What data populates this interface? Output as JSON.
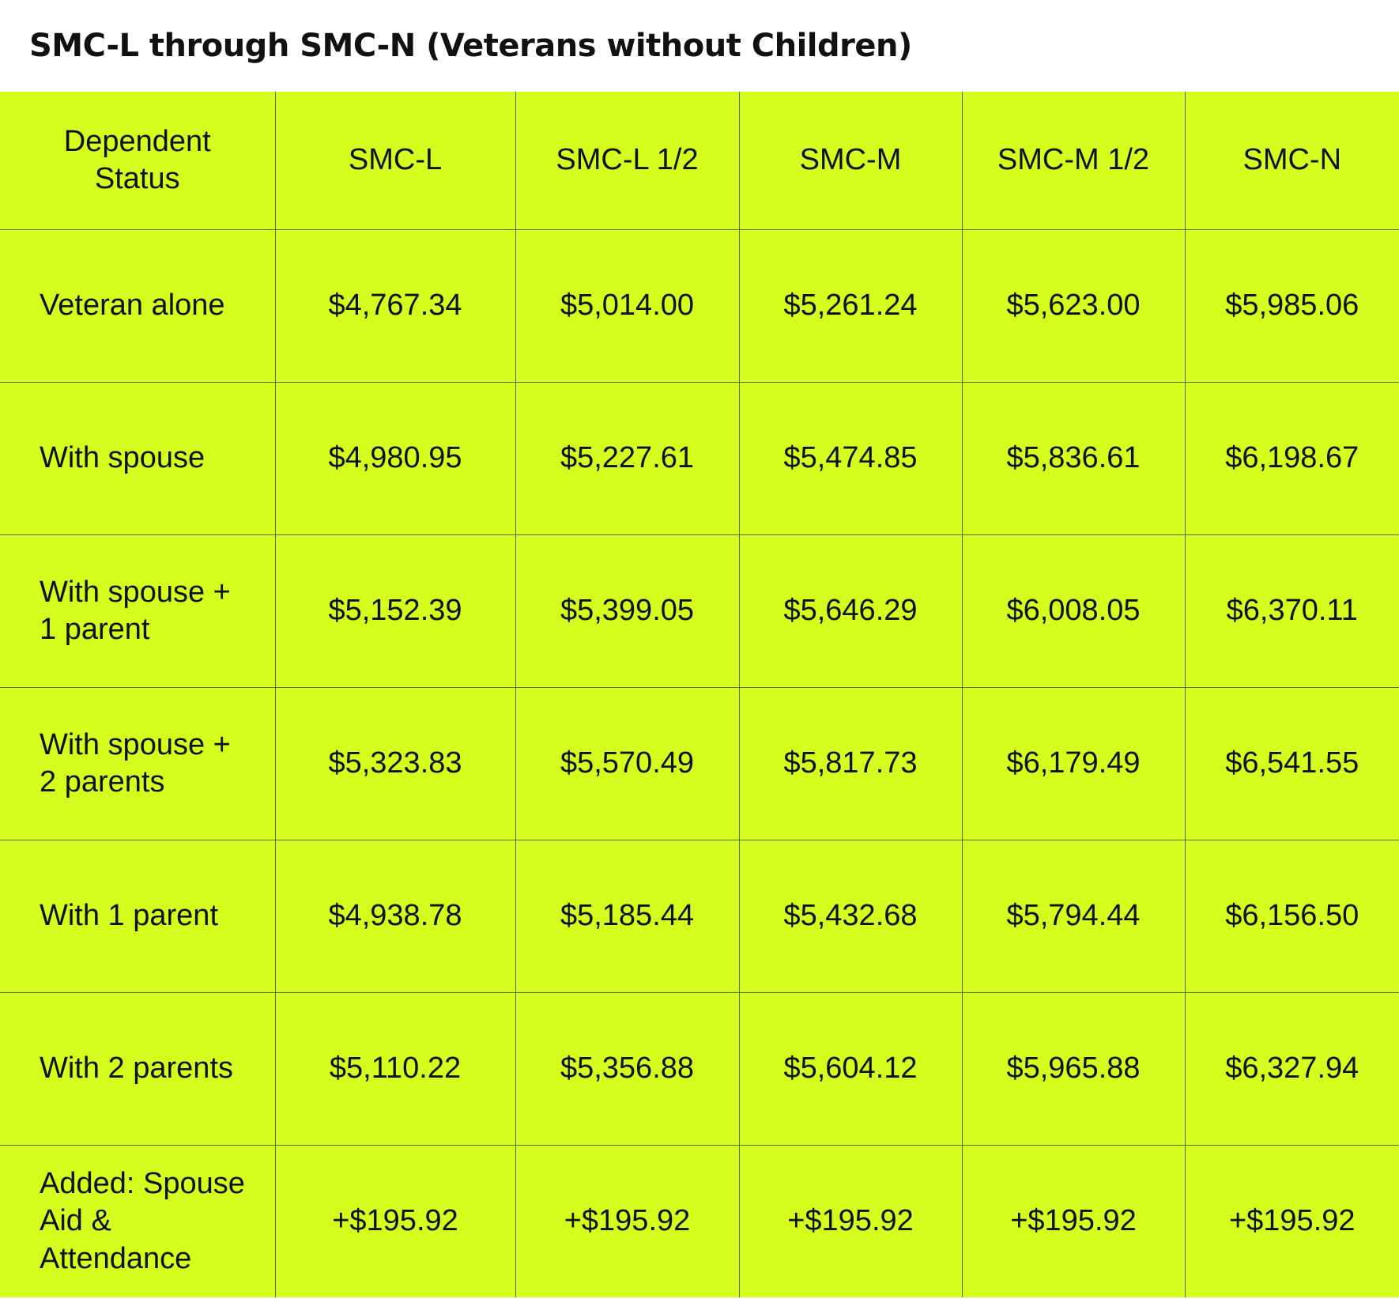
{
  "title": "SMC-L through SMC-N (Veterans without Children)",
  "table": {
    "headers": [
      "Dependent Status",
      "SMC-L",
      "SMC-L 1/2",
      "SMC-M",
      "SMC-M 1/2",
      "SMC-N"
    ],
    "rows": [
      [
        "Veteran alone",
        "$4,767.34",
        "$5,014.00",
        "$5,261.24",
        "$5,623.00",
        "$5,985.06"
      ],
      [
        "With spouse",
        "$4,980.95",
        "$5,227.61",
        "$5,474.85",
        "$5,836.61",
        "$6,198.67"
      ],
      [
        "With spouse + 1 parent",
        "$5,152.39",
        "$5,399.05",
        "$5,646.29",
        "$6,008.05",
        "$6,370.11"
      ],
      [
        "With spouse + 2 parents",
        "$5,323.83",
        "$5,570.49",
        "$5,817.73",
        "$6,179.49",
        "$6,541.55"
      ],
      [
        "With 1 parent",
        "$4,938.78",
        "$5,185.44",
        "$5,432.68",
        "$5,794.44",
        "$6,156.50"
      ],
      [
        "With 2 parents",
        "$5,110.22",
        "$5,356.88",
        "$5,604.12",
        "$5,965.88",
        "$6,327.94"
      ],
      [
        "Added: Spouse Aid & Attendance",
        "+$195.92",
        "+$195.92",
        "+$195.92",
        "+$195.92",
        "+$195.92"
      ]
    ]
  },
  "colors": {
    "table_background": "#d4fe1e",
    "grid": "#5a6a10"
  }
}
